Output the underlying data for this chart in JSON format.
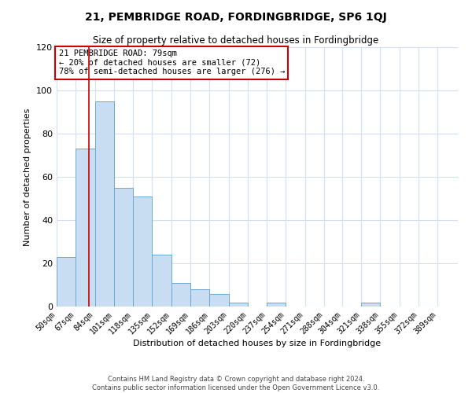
{
  "title": "21, PEMBRIDGE ROAD, FORDINGBRIDGE, SP6 1QJ",
  "subtitle": "Size of property relative to detached houses in Fordingbridge",
  "xlabel": "Distribution of detached houses by size in Fordingbridge",
  "ylabel": "Number of detached properties",
  "bin_labels": [
    "50sqm",
    "67sqm",
    "84sqm",
    "101sqm",
    "118sqm",
    "135sqm",
    "152sqm",
    "169sqm",
    "186sqm",
    "203sqm",
    "220sqm",
    "237sqm",
    "254sqm",
    "271sqm",
    "288sqm",
    "304sqm",
    "321sqm",
    "338sqm",
    "355sqm",
    "372sqm",
    "389sqm"
  ],
  "bar_values": [
    23,
    73,
    95,
    55,
    51,
    24,
    11,
    8,
    6,
    2,
    0,
    2,
    0,
    0,
    0,
    0,
    2,
    0,
    0,
    0,
    0
  ],
  "bar_color": "#c9ddf2",
  "bar_edge_color": "#6aaad4",
  "vline_x": 79,
  "vline_color": "#cc0000",
  "ylim": [
    0,
    120
  ],
  "yticks": [
    0,
    20,
    40,
    60,
    80,
    100,
    120
  ],
  "annotation_title": "21 PEMBRIDGE ROAD: 79sqm",
  "annotation_line1": "← 20% of detached houses are smaller (72)",
  "annotation_line2": "78% of semi-detached houses are larger (276) →",
  "annotation_box_color": "#ffffff",
  "annotation_box_edgecolor": "#cc0000",
  "footer1": "Contains HM Land Registry data © Crown copyright and database right 2024.",
  "footer2": "Contains public sector information licensed under the Open Government Licence v3.0.",
  "bin_starts": [
    50,
    67,
    84,
    101,
    118,
    135,
    152,
    169,
    186,
    203,
    220,
    237,
    254,
    271,
    288,
    304,
    321,
    338,
    355,
    372,
    389
  ],
  "bin_width": 17,
  "grid_color": "#d0e0f0",
  "title_fontsize": 10,
  "subtitle_fontsize": 8.5,
  "axis_label_fontsize": 8,
  "tick_fontsize": 7,
  "annotation_fontsize": 7.5,
  "footer_fontsize": 6
}
